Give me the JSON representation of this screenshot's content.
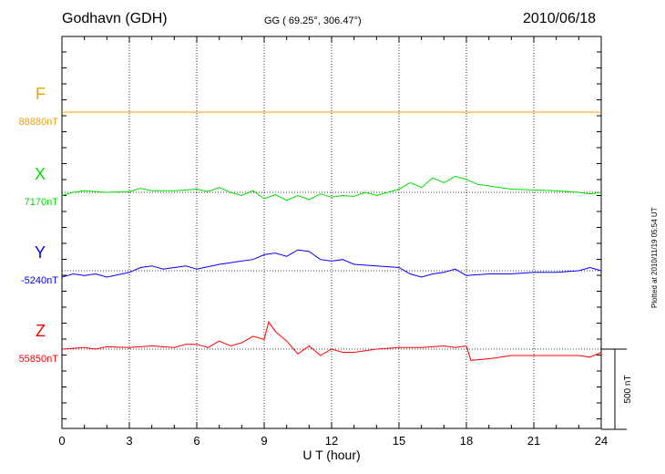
{
  "header": {
    "station": "Godhavn (GDH)",
    "coords": "GG ( 69.25°, 306.47°)",
    "date": "2010/06/18"
  },
  "plotted_at": "Plotted at 2010/11/19 05:54 UT",
  "chart_data": {
    "type": "line",
    "xlabel": "U T (hour)",
    "xlim": [
      0,
      24
    ],
    "xticks": [
      0,
      3,
      6,
      9,
      12,
      15,
      18,
      21,
      24
    ],
    "grid": "dotted vertical lines every 3 hours",
    "scale_bar": {
      "label": "500 nT",
      "value_nT": 500
    },
    "series": [
      {
        "name": "F",
        "baseline_label": "88880nT",
        "color": "#f0a000",
        "x": [
          0,
          6,
          12,
          18,
          24
        ],
        "values": [
          0,
          0,
          0,
          0,
          0
        ]
      },
      {
        "name": "X",
        "baseline_label": "7170nT",
        "color": "#00e000",
        "x": [
          0,
          0.5,
          1,
          2,
          3,
          3.5,
          4,
          5,
          6,
          6.5,
          7,
          7.5,
          8,
          8.5,
          9,
          9.5,
          10,
          10.5,
          11,
          11.5,
          12,
          12.5,
          13,
          13.5,
          14,
          15,
          15.5,
          16,
          16.5,
          17,
          17.5,
          18,
          18.5,
          19,
          20,
          21,
          22,
          23,
          23.5,
          24
        ],
        "values": [
          -20,
          0,
          10,
          0,
          5,
          25,
          10,
          10,
          20,
          5,
          30,
          0,
          -20,
          10,
          -40,
          -15,
          -50,
          -20,
          -45,
          -10,
          -30,
          -20,
          -25,
          0,
          -20,
          20,
          60,
          30,
          90,
          60,
          100,
          80,
          50,
          40,
          20,
          15,
          10,
          0,
          -10,
          0
        ]
      },
      {
        "name": "Y",
        "baseline_label": "-5240nT",
        "color": "#0000ff",
        "x": [
          0,
          0.5,
          1,
          1.5,
          2,
          3,
          3.5,
          4,
          4.5,
          5,
          5.5,
          6,
          7,
          7.5,
          8,
          8.5,
          9,
          9.5,
          10,
          10.5,
          11,
          11.5,
          12,
          12.5,
          13,
          14,
          15,
          15.5,
          16,
          16.5,
          17,
          17.5,
          18,
          19,
          20,
          21,
          22,
          23,
          23.5,
          24
        ],
        "values": [
          -40,
          -20,
          -30,
          -20,
          -40,
          -10,
          20,
          30,
          10,
          20,
          30,
          10,
          40,
          50,
          60,
          70,
          100,
          110,
          90,
          130,
          120,
          70,
          60,
          70,
          40,
          30,
          20,
          -20,
          -40,
          -20,
          -10,
          10,
          -30,
          -20,
          -20,
          -10,
          -10,
          0,
          20,
          0
        ]
      },
      {
        "name": "Z",
        "baseline_label": "55850nT",
        "color": "#ff0000",
        "x": [
          0,
          0.5,
          1,
          1.5,
          2,
          3,
          4,
          5,
          5.5,
          6,
          6.5,
          7,
          7.5,
          8,
          8.5,
          9,
          9.2,
          9.5,
          10,
          10.5,
          11,
          11.5,
          12,
          12.5,
          13,
          14,
          15,
          16,
          17,
          17.5,
          18,
          18.2,
          19,
          20,
          21,
          22,
          23,
          23.5,
          24
        ],
        "values": [
          0,
          5,
          10,
          0,
          15,
          10,
          20,
          10,
          30,
          30,
          10,
          50,
          20,
          40,
          80,
          60,
          170,
          110,
          50,
          -30,
          20,
          -40,
          0,
          -20,
          -20,
          0,
          10,
          10,
          20,
          10,
          20,
          -70,
          -60,
          -40,
          -40,
          -40,
          -40,
          -50,
          -20
        ]
      }
    ]
  }
}
